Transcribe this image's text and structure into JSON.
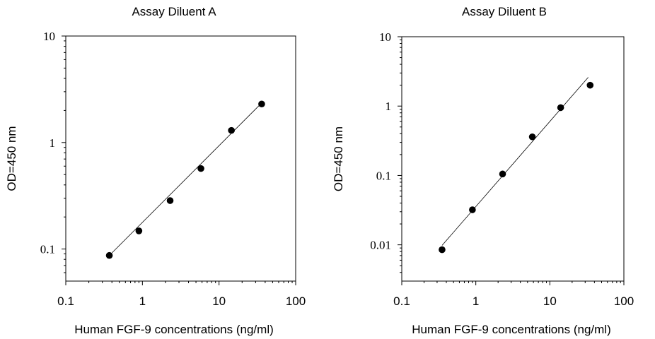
{
  "chart_data": [
    {
      "type": "scatter",
      "title": "Assay Diluent A",
      "xlabel": "Human FGF-9 concentrations (ng/ml)",
      "ylabel": "OD=450 nm",
      "xscale": "log",
      "yscale": "log",
      "xlim": [
        0.1,
        100
      ],
      "ylim": [
        0.05,
        10
      ],
      "x_ticks": [
        0.1,
        1,
        10,
        100
      ],
      "x_tick_labels": [
        "0.1",
        "1",
        "10",
        "100"
      ],
      "y_ticks": [
        0.1,
        1,
        10
      ],
      "y_tick_labels": [
        "0.1",
        "1",
        "10"
      ],
      "grid": false,
      "series": [
        {
          "x": [
            0.37,
            0.9,
            2.3,
            5.8,
            14.5,
            36
          ],
          "y": [
            0.087,
            0.148,
            0.285,
            0.57,
            1.3,
            2.3
          ]
        }
      ],
      "fit_line": {
        "x": [
          0.37,
          36
        ],
        "y": [
          0.087,
          2.35
        ]
      }
    },
    {
      "type": "scatter",
      "title": "Assay Diluent B",
      "xlabel": "Human FGF-9 concentrations (ng/ml)",
      "ylabel": "OD=450 nm",
      "xscale": "log",
      "yscale": "log",
      "xlim": [
        0.1,
        100
      ],
      "ylim": [
        0.003,
        10
      ],
      "x_ticks": [
        0.1,
        1,
        10,
        100
      ],
      "x_tick_labels": [
        "0.1",
        "1",
        "10",
        "100"
      ],
      "y_ticks": [
        0.01,
        0.1,
        1,
        10
      ],
      "y_tick_labels": [
        "0.01",
        "0.1",
        "1",
        "10"
      ],
      "grid": false,
      "series": [
        {
          "x": [
            0.35,
            0.9,
            2.3,
            5.8,
            14,
            35
          ],
          "y": [
            0.0085,
            0.032,
            0.105,
            0.36,
            0.95,
            2.0
          ]
        }
      ],
      "fit_line": {
        "x": [
          0.35,
          33
        ],
        "y": [
          0.0098,
          2.6
        ]
      }
    }
  ]
}
